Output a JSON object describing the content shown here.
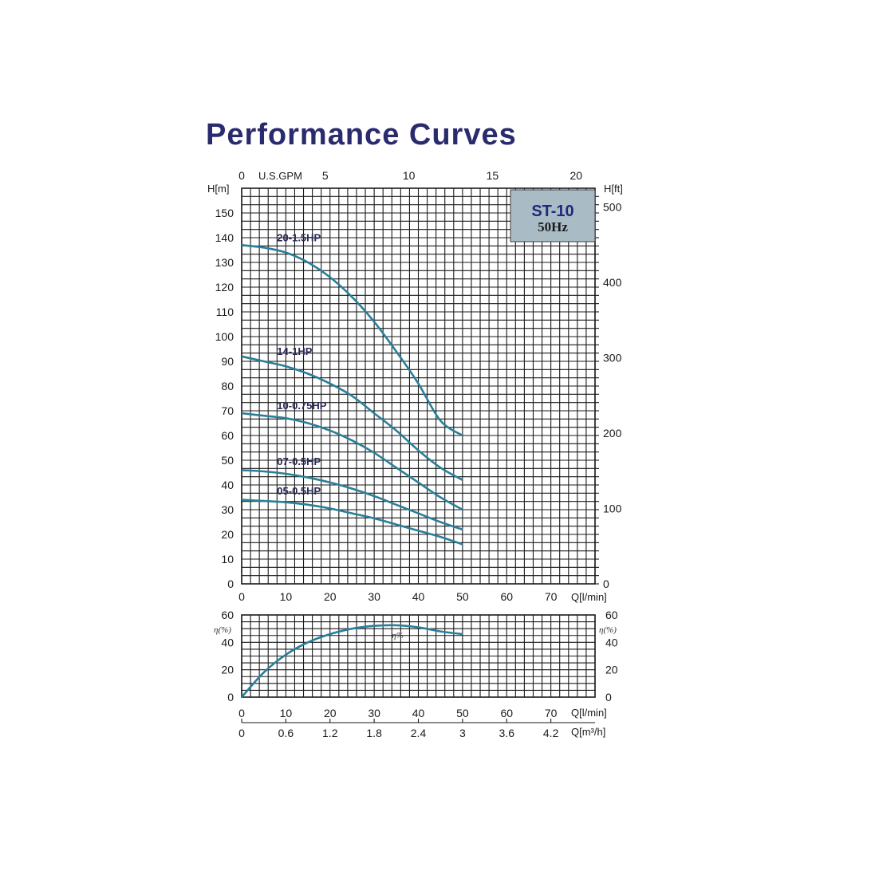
{
  "page_title": "Performance Curves",
  "colors": {
    "title": "#2a2a6e",
    "curve": "#2a7f98",
    "box_fill": "#a9bcc6"
  },
  "model_box": {
    "model": "ST-10",
    "frequency": "50Hz"
  },
  "chart_data": [
    {
      "type": "line",
      "title": "Performance Curves",
      "x_label": "Q[l/min]",
      "x_ticks": [
        0,
        10,
        20,
        30,
        40,
        50,
        60,
        70
      ],
      "xlim": [
        0,
        80
      ],
      "y_label": "H[m]",
      "y_ticks": [
        0,
        10,
        20,
        30,
        40,
        50,
        60,
        70,
        80,
        90,
        100,
        110,
        120,
        130,
        140,
        150
      ],
      "ylim": [
        0,
        160
      ],
      "secondary_x_label": "U.S.GPM",
      "secondary_x_ticks": [
        0,
        5,
        10,
        15,
        20
      ],
      "secondary_y_label": "H[ft]",
      "secondary_y_ticks": [
        0,
        100,
        200,
        300,
        400,
        500
      ],
      "grid": true,
      "series": [
        {
          "name": "20-1.5HP",
          "x": [
            0,
            5,
            10,
            15,
            20,
            25,
            30,
            35,
            40,
            45,
            50
          ],
          "y": [
            137,
            136,
            134,
            130,
            124,
            116,
            106,
            94,
            81,
            66,
            60
          ]
        },
        {
          "name": "14-1HP",
          "x": [
            0,
            5,
            10,
            15,
            20,
            25,
            30,
            35,
            40,
            45,
            50
          ],
          "y": [
            92,
            90,
            88,
            85,
            81,
            76,
            69,
            62,
            54,
            47,
            42
          ]
        },
        {
          "name": "10-0.75HP",
          "x": [
            0,
            5,
            10,
            15,
            20,
            25,
            30,
            35,
            40,
            45,
            50
          ],
          "y": [
            69,
            68,
            67,
            65,
            62,
            58,
            53,
            47,
            41,
            35,
            30
          ]
        },
        {
          "name": "07-0.5HP",
          "x": [
            0,
            5,
            10,
            15,
            20,
            25,
            30,
            35,
            40,
            45,
            50
          ],
          "y": [
            46,
            45.5,
            44.5,
            43,
            41,
            38.5,
            35.5,
            32,
            28.5,
            25,
            22
          ]
        },
        {
          "name": "05-0.5HP",
          "x": [
            0,
            5,
            10,
            15,
            20,
            25,
            30,
            35,
            40,
            45,
            50
          ],
          "y": [
            34,
            33.5,
            33,
            32,
            30.5,
            28.5,
            26.5,
            24,
            21.5,
            19,
            16
          ]
        }
      ]
    },
    {
      "type": "line",
      "x_label": "Q[l/min]",
      "x_ticks": [
        0,
        10,
        20,
        30,
        40,
        50,
        60,
        70
      ],
      "xlim": [
        0,
        80
      ],
      "y_label": "η(%)",
      "y_ticks": [
        0,
        20,
        40,
        60
      ],
      "ylim": [
        0,
        60
      ],
      "secondary_x_label": "Q[m³/h]",
      "secondary_x_ticks": [
        "0",
        "0.6",
        "1.2",
        "1.8",
        "2.4",
        "3",
        "3.6",
        "4.2"
      ],
      "grid": true,
      "series": [
        {
          "name": "η%",
          "x": [
            0,
            5,
            10,
            15,
            20,
            25,
            30,
            35,
            40,
            45,
            50
          ],
          "y": [
            0,
            18,
            31,
            40,
            46,
            50,
            52,
            52.5,
            51,
            48,
            46
          ]
        }
      ]
    }
  ]
}
